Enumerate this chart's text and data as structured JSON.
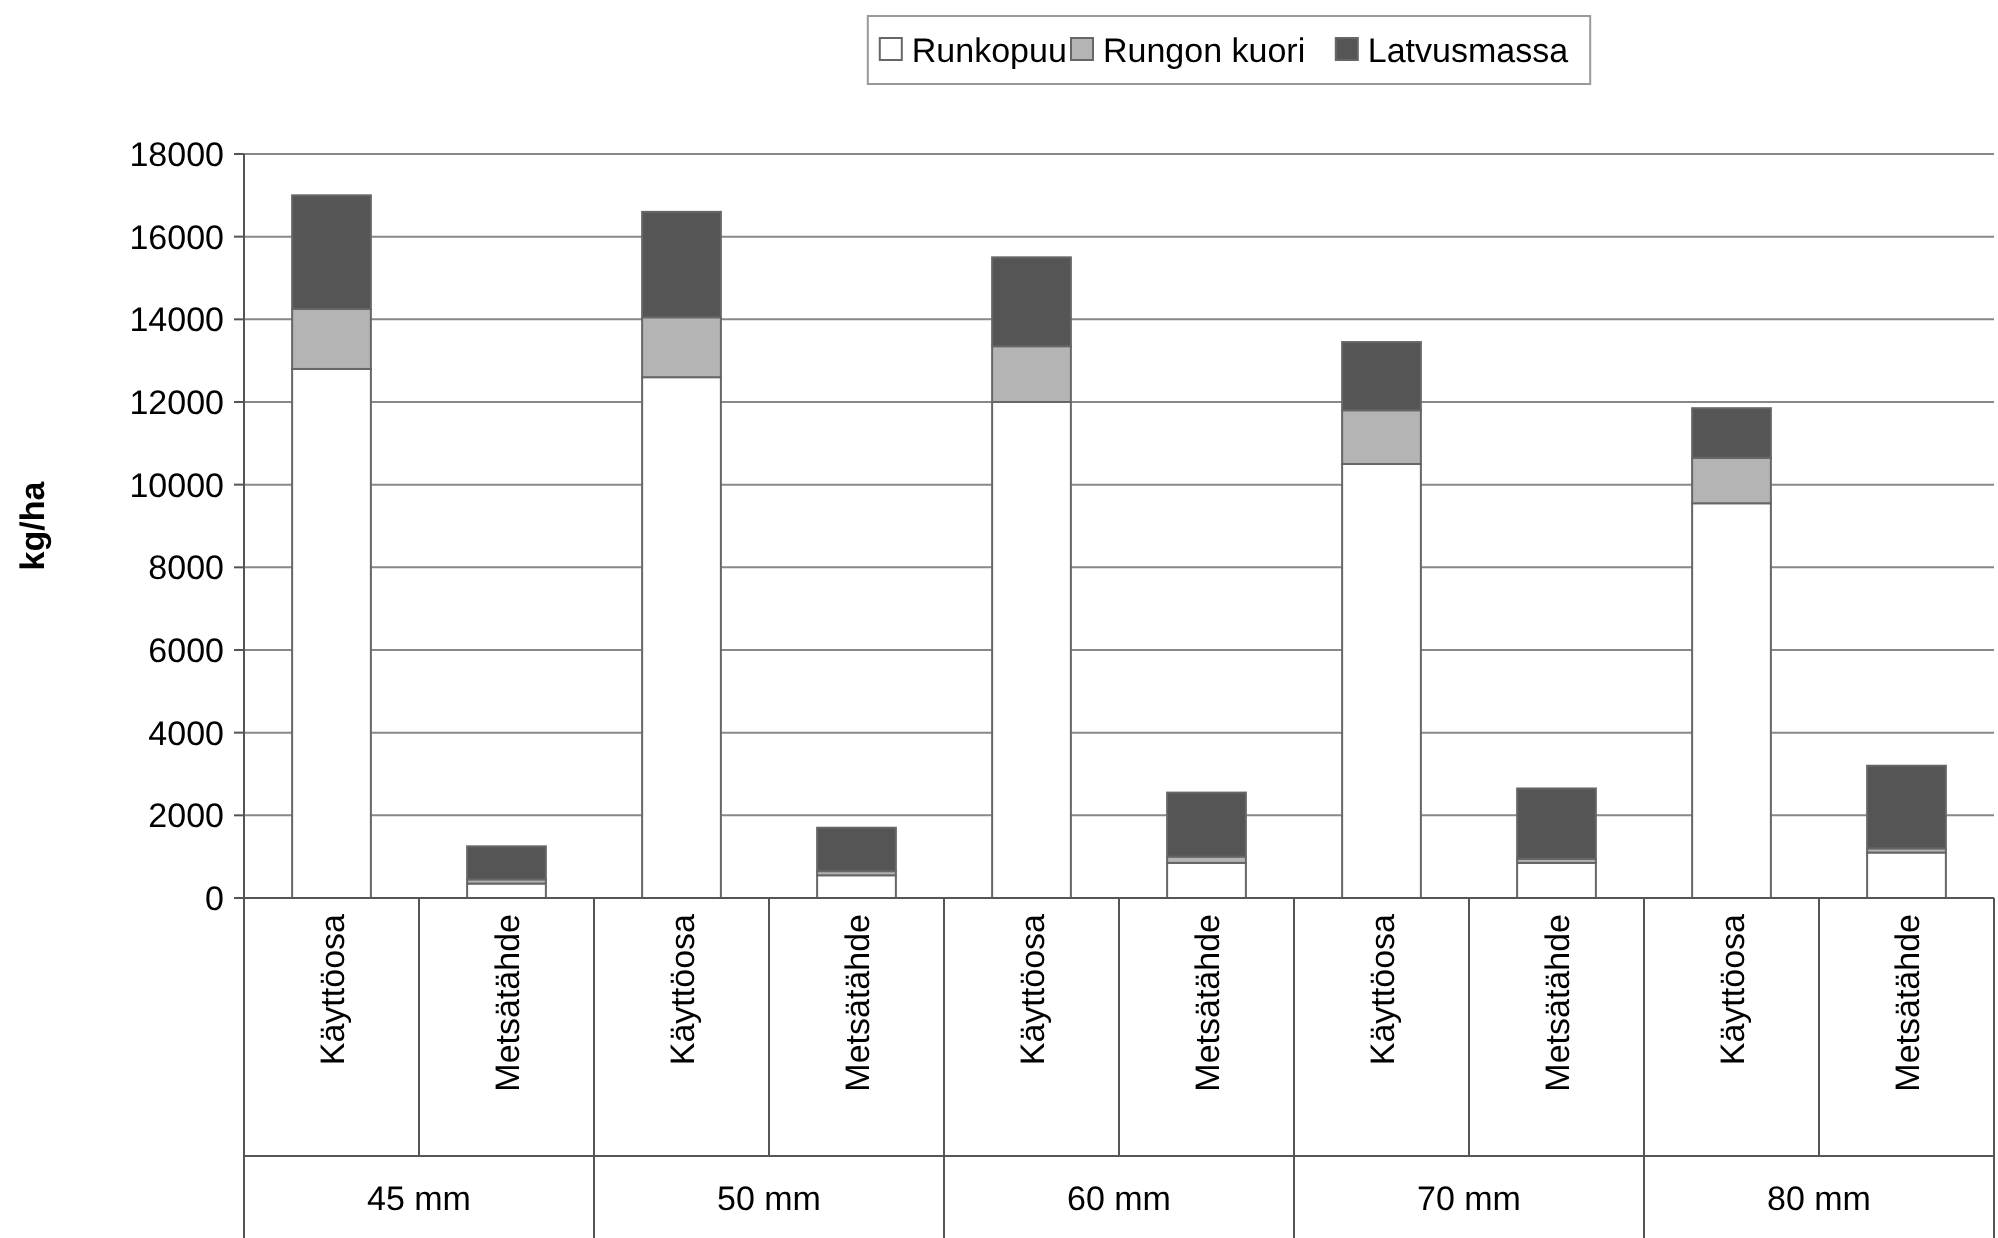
{
  "chart_data": {
    "type": "bar",
    "stacked": true,
    "ylabel": "kg/ha",
    "categories": [
      "Käyttöosa",
      "Metsätähde",
      "Käyttöosa",
      "Metsätähde",
      "Käyttöosa",
      "Metsätähde",
      "Käyttöosa",
      "Metsätähde",
      "Käyttöosa",
      "Metsätähde"
    ],
    "series": [
      {
        "name": "Runkopuu",
        "color": "#ffffff",
        "values": [
          12800,
          350,
          12600,
          550,
          12000,
          850,
          10500,
          850,
          9550,
          1100
        ]
      },
      {
        "name": "Rungon kuori",
        "color": "#b4b4b4",
        "values": [
          1450,
          100,
          1450,
          100,
          1350,
          150,
          1300,
          100,
          1100,
          100
        ]
      },
      {
        "name": "Latvusmassa",
        "color": "#555555",
        "values": [
          2750,
          800,
          2550,
          1050,
          2150,
          1550,
          1650,
          1700,
          1200,
          2000
        ]
      }
    ],
    "annotations": [
      "45 mm",
      "50 mm",
      "60 mm",
      "70 mm",
      "80 mm"
    ],
    "ylim": [
      0,
      18000
    ],
    "yticks": [
      0,
      2000,
      4000,
      6000,
      8000,
      10000,
      12000,
      14000,
      16000,
      18000
    ],
    "grid": "y",
    "legend": "top"
  }
}
